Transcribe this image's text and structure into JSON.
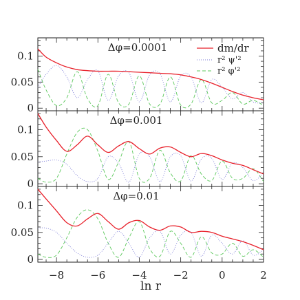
{
  "chart_data": [
    {
      "type": "line",
      "title": "Δφ=0.0001",
      "xlim": [
        -8.9,
        2.0
      ],
      "ylim": [
        -0.005,
        0.135
      ],
      "yticks": [
        0,
        0.05,
        0.1
      ],
      "ytick_labels": [
        "0",
        "0.05",
        "0.1"
      ],
      "legend": [
        "dm/dr",
        "r² ψ'²",
        "r² φ'²"
      ],
      "legend_position": "top-right",
      "series": [
        {
          "name": "dm/dr",
          "color": "#e8202a",
          "style": "solid",
          "x": [
            -8.9,
            -8.5,
            -8.0,
            -7.5,
            -7.0,
            -6.5,
            -6.0,
            -5.5,
            -5.0,
            -4.5,
            -4.0,
            -3.5,
            -3.0,
            -2.5,
            -2.0,
            -1.5,
            -1.0,
            -0.5,
            0.0,
            0.5,
            1.0,
            1.5,
            2.0
          ],
          "y": [
            0.114,
            0.098,
            0.087,
            0.079,
            0.074,
            0.072,
            0.071,
            0.071,
            0.071,
            0.07,
            0.069,
            0.068,
            0.067,
            0.066,
            0.064,
            0.06,
            0.055,
            0.048,
            0.04,
            0.032,
            0.025,
            0.02,
            0.016
          ]
        },
        {
          "name": "r² ψ'²",
          "color": "#7a7ad6",
          "style": "dotted",
          "x": [
            -8.9,
            -8.5,
            -8.0,
            -7.5,
            -7.0,
            -6.5,
            -6.0,
            -5.5,
            -5.0,
            -4.5,
            -4.0,
            -3.5,
            -3.0,
            -2.5,
            -2.0,
            -1.5,
            -1.0,
            -0.5,
            0.0,
            0.5,
            1.0,
            1.5,
            2.0
          ],
          "y": [
            0.04,
            0.065,
            0.082,
            0.06,
            0.02,
            0.055,
            0.072,
            0.015,
            0.062,
            0.068,
            0.012,
            0.064,
            0.066,
            0.012,
            0.062,
            0.06,
            0.01,
            0.055,
            0.04,
            0.018,
            0.03,
            0.012,
            0.01
          ]
        },
        {
          "name": "r² φ'²",
          "color": "#5cc85c",
          "style": "dashed",
          "x": [
            -8.9,
            -8.5,
            -8.0,
            -7.5,
            -7.0,
            -6.5,
            -6.0,
            -5.5,
            -5.0,
            -4.5,
            -4.0,
            -3.5,
            -3.0,
            -2.5,
            -2.0,
            -1.5,
            -1.0,
            -0.5,
            0.0,
            0.5,
            1.0,
            1.5,
            2.0
          ],
          "y": [
            0.075,
            0.035,
            0.005,
            0.02,
            0.07,
            0.018,
            0.005,
            0.065,
            0.01,
            0.008,
            0.062,
            0.008,
            0.008,
            0.06,
            0.006,
            0.008,
            0.055,
            0.01,
            0.015,
            0.03,
            0.008,
            0.015,
            0.005
          ]
        }
      ]
    },
    {
      "type": "line",
      "title": "Δφ=0.001",
      "xlim": [
        -8.9,
        2.0
      ],
      "ylim": [
        -0.005,
        0.135
      ],
      "yticks": [
        0,
        0.05,
        0.1
      ],
      "ytick_labels": [
        "0",
        "0.05",
        "0.1"
      ],
      "series": [
        {
          "name": "dm/dr",
          "color": "#e8202a",
          "style": "solid",
          "x": [
            -8.9,
            -8.5,
            -8.0,
            -7.5,
            -7.0,
            -6.5,
            -6.0,
            -5.5,
            -5.0,
            -4.5,
            -4.0,
            -3.5,
            -3.0,
            -2.5,
            -2.0,
            -1.5,
            -1.0,
            -0.5,
            0.0,
            0.5,
            1.0,
            1.5,
            2.0
          ],
          "y": [
            0.13,
            0.105,
            0.08,
            0.06,
            0.072,
            0.088,
            0.072,
            0.058,
            0.07,
            0.078,
            0.065,
            0.055,
            0.066,
            0.068,
            0.058,
            0.05,
            0.056,
            0.052,
            0.044,
            0.038,
            0.034,
            0.026,
            0.018
          ]
        },
        {
          "name": "r² ψ'²",
          "color": "#7a7ad6",
          "style": "dotted",
          "x": [
            -8.9,
            -8.5,
            -8.0,
            -7.5,
            -7.0,
            -6.5,
            -6.0,
            -5.5,
            -5.0,
            -4.5,
            -4.0,
            -3.5,
            -3.0,
            -2.5,
            -2.0,
            -1.5,
            -1.0,
            -0.5,
            0.0,
            0.5,
            1.0,
            1.5,
            2.0
          ],
          "y": [
            0.04,
            0.042,
            0.044,
            0.036,
            0.015,
            0.004,
            0.01,
            0.05,
            0.038,
            0.003,
            0.055,
            0.05,
            0.004,
            0.05,
            0.052,
            0.005,
            0.046,
            0.047,
            0.008,
            0.038,
            0.03,
            0.006,
            0.02
          ]
        },
        {
          "name": "r² φ'²",
          "color": "#5cc85c",
          "style": "dashed",
          "x": [
            -8.9,
            -8.5,
            -8.0,
            -7.5,
            -7.0,
            -6.5,
            -6.0,
            -5.5,
            -5.0,
            -4.5,
            -4.0,
            -3.5,
            -3.0,
            -2.5,
            -2.0,
            -1.5,
            -1.0,
            -0.5,
            0.0,
            0.5,
            1.0,
            1.5,
            2.0
          ],
          "y": [
            0.01,
            0.003,
            0.01,
            0.055,
            0.095,
            0.1,
            0.06,
            0.008,
            0.04,
            0.078,
            0.01,
            0.01,
            0.062,
            0.02,
            0.005,
            0.052,
            0.018,
            0.006,
            0.042,
            0.01,
            0.01,
            0.028,
            0.004
          ]
        }
      ]
    },
    {
      "type": "line",
      "title": "Δφ=0.01",
      "xlim": [
        -8.9,
        2.0
      ],
      "ylim": [
        -0.005,
        0.135
      ],
      "yticks": [
        0,
        0.05,
        0.1
      ],
      "ytick_labels": [
        "0",
        "0.05",
        "0.1"
      ],
      "xticks": [
        -8,
        -6,
        -4,
        -2,
        0,
        2
      ],
      "xtick_labels": [
        "−8",
        "−6",
        "−4",
        "−2",
        "0",
        "2"
      ],
      "xlabel": "ln r",
      "series": [
        {
          "name": "dm/dr",
          "color": "#e8202a",
          "style": "solid",
          "x": [
            -8.9,
            -8.5,
            -8.0,
            -7.5,
            -7.0,
            -6.5,
            -6.0,
            -5.5,
            -5.0,
            -4.5,
            -4.0,
            -3.5,
            -3.0,
            -2.5,
            -2.0,
            -1.5,
            -1.0,
            -0.5,
            0.0,
            0.5,
            1.0,
            1.5,
            2.0
          ],
          "y": [
            0.13,
            0.112,
            0.09,
            0.068,
            0.062,
            0.075,
            0.085,
            0.07,
            0.056,
            0.068,
            0.072,
            0.06,
            0.054,
            0.062,
            0.06,
            0.05,
            0.052,
            0.05,
            0.043,
            0.038,
            0.033,
            0.026,
            0.018
          ]
        },
        {
          "name": "r² ψ'²",
          "color": "#7a7ad6",
          "style": "dotted",
          "x": [
            -8.9,
            -8.5,
            -8.0,
            -7.5,
            -7.0,
            -6.5,
            -6.0,
            -5.5,
            -5.0,
            -4.5,
            -4.0,
            -3.5,
            -3.0,
            -2.5,
            -2.0,
            -1.5,
            -1.0,
            -0.5,
            0.0,
            0.5,
            1.0,
            1.5,
            2.0
          ],
          "y": [
            0.058,
            0.058,
            0.05,
            0.03,
            0.012,
            0.004,
            0.008,
            0.03,
            0.052,
            0.03,
            0.004,
            0.04,
            0.052,
            0.01,
            0.045,
            0.05,
            0.006,
            0.045,
            0.03,
            0.01,
            0.035,
            0.008,
            0.018
          ]
        },
        {
          "name": "r² φ'²",
          "color": "#5cc85c",
          "style": "dashed",
          "x": [
            -8.9,
            -8.5,
            -8.0,
            -7.5,
            -7.0,
            -6.5,
            -6.0,
            -5.5,
            -5.0,
            -4.5,
            -4.0,
            -3.5,
            -3.0,
            -2.5,
            -2.0,
            -1.5,
            -1.0,
            -0.5,
            0.0,
            0.5,
            1.0,
            1.5,
            2.0
          ],
          "y": [
            0.01,
            0.004,
            0.008,
            0.04,
            0.078,
            0.092,
            0.075,
            0.03,
            0.004,
            0.04,
            0.07,
            0.02,
            0.006,
            0.052,
            0.03,
            0.004,
            0.042,
            0.012,
            0.01,
            0.03,
            0.006,
            0.018,
            0.004
          ]
        }
      ]
    }
  ]
}
